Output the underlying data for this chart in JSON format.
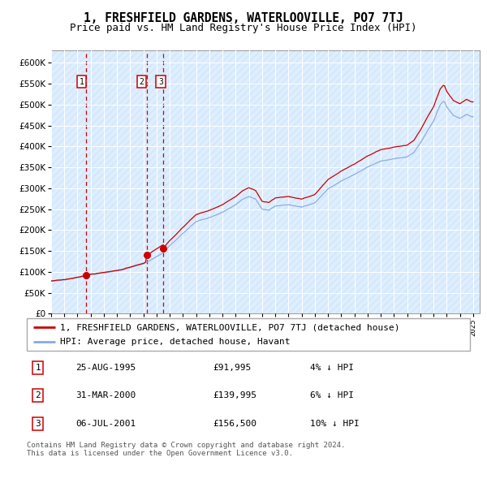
{
  "title": "1, FRESHFIELD GARDENS, WATERLOOVILLE, PO7 7TJ",
  "subtitle": "Price paid vs. HM Land Registry's House Price Index (HPI)",
  "legend_property": "1, FRESHFIELD GARDENS, WATERLOOVILLE, PO7 7TJ (detached house)",
  "legend_hpi": "HPI: Average price, detached house, Havant",
  "transactions": [
    {
      "num": 1,
      "date": "25-AUG-1995",
      "price": 91995,
      "pct": "4%",
      "dir": "↓"
    },
    {
      "num": 2,
      "date": "31-MAR-2000",
      "price": 139995,
      "pct": "6%",
      "dir": "↓"
    },
    {
      "num": 3,
      "date": "06-JUL-2001",
      "price": 156500,
      "pct": "10%",
      "dir": "↓"
    }
  ],
  "transaction_dates_decimal": [
    1995.648,
    2000.247,
    2001.507
  ],
  "transaction_prices": [
    91995,
    139995,
    156500
  ],
  "footer": "Contains HM Land Registry data © Crown copyright and database right 2024.\nThis data is licensed under the Open Government Licence v3.0.",
  "property_line_color": "#cc0000",
  "hpi_line_color": "#88aadd",
  "vline_color": "#cc0000",
  "dot_color": "#cc0000",
  "background_color": "#ddeeff",
  "grid_color": "#ffffff",
  "ylim": [
    0,
    630000
  ],
  "xmin": 1993.0,
  "xmax": 2025.5,
  "hpi_anchors_t": [
    1993.0,
    1994.0,
    1995.0,
    1995.5,
    1996.0,
    1997.0,
    1998.0,
    1999.0,
    2000.0,
    2001.0,
    2001.5,
    2002.0,
    2003.0,
    2004.0,
    2005.0,
    2006.0,
    2007.0,
    2007.5,
    2008.0,
    2008.5,
    2009.0,
    2009.5,
    2010.0,
    2011.0,
    2012.0,
    2013.0,
    2014.0,
    2015.0,
    2016.0,
    2017.0,
    2018.0,
    2019.0,
    2020.0,
    2020.5,
    2021.0,
    2021.5,
    2022.0,
    2022.5,
    2022.8,
    2023.0,
    2023.5,
    2024.0,
    2024.5,
    2024.9
  ],
  "hpi_anchors_v": [
    78000,
    80000,
    86000,
    90000,
    93000,
    97000,
    102000,
    110000,
    118000,
    135000,
    143000,
    160000,
    190000,
    218000,
    228000,
    240000,
    258000,
    270000,
    278000,
    272000,
    248000,
    245000,
    255000,
    258000,
    252000,
    262000,
    295000,
    315000,
    330000,
    350000,
    365000,
    370000,
    375000,
    385000,
    408000,
    435000,
    460000,
    500000,
    510000,
    495000,
    475000,
    468000,
    478000,
    472000
  ],
  "label_box_positions": [
    [
      1995.3,
      555000,
      "1"
    ],
    [
      1999.85,
      555000,
      "2"
    ],
    [
      2001.3,
      555000,
      "3"
    ]
  ],
  "title_fontsize": 10.5,
  "subtitle_fontsize": 9,
  "ytick_fontsize": 7.5,
  "xtick_fontsize": 6.5,
  "legend_fontsize": 8,
  "table_fontsize": 8,
  "footer_fontsize": 6.5
}
